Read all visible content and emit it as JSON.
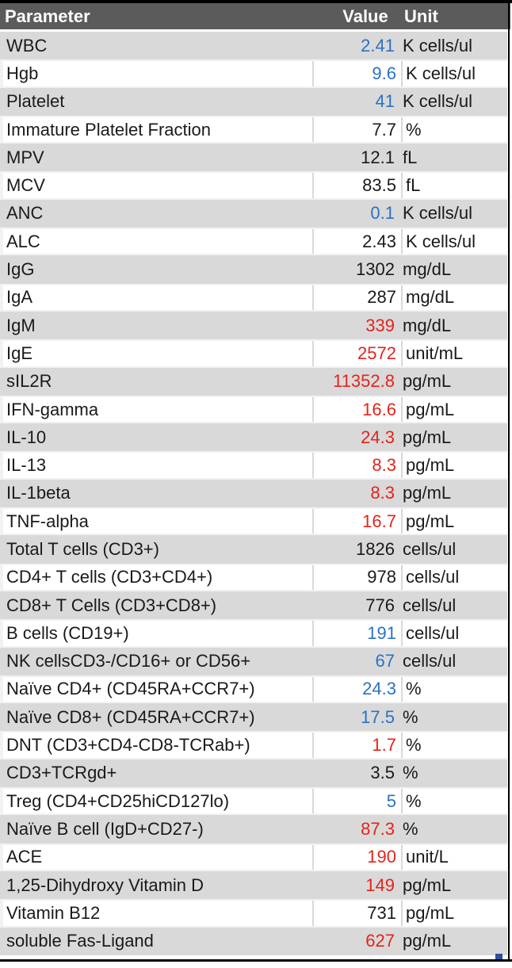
{
  "header": {
    "param": "Parameter",
    "value": "Value",
    "unit": "Unit"
  },
  "colors": {
    "normal": "#1a1a1a",
    "low": "#2a72c4",
    "high": "#e5231c",
    "header_bg": "#5b5b5b"
  },
  "rows": [
    {
      "name": "WBC",
      "value": "2.41",
      "unit": "K cells/ul",
      "flag": "low"
    },
    {
      "name": "Hgb",
      "value": "9.6",
      "unit": "K cells/ul",
      "flag": "low"
    },
    {
      "name": "Platelet",
      "value": "41",
      "unit": "K cells/ul",
      "flag": "low"
    },
    {
      "name": "Immature Platelet Fraction",
      "value": "7.7",
      "unit": "%",
      "flag": "normal"
    },
    {
      "name": "MPV",
      "value": "12.1",
      "unit": "fL",
      "flag": "normal"
    },
    {
      "name": "MCV",
      "value": "83.5",
      "unit": "fL",
      "flag": "normal"
    },
    {
      "name": "ANC",
      "value": "0.1",
      "unit": "K cells/ul",
      "flag": "low"
    },
    {
      "name": "ALC",
      "value": "2.43",
      "unit": "K cells/ul",
      "flag": "normal"
    },
    {
      "name": "IgG",
      "value": "1302",
      "unit": "mg/dL",
      "flag": "normal"
    },
    {
      "name": "IgA",
      "value": "287",
      "unit": "mg/dL",
      "flag": "normal"
    },
    {
      "name": "IgM",
      "value": "339",
      "unit": "mg/dL",
      "flag": "high"
    },
    {
      "name": "IgE",
      "value": "2572",
      "unit": "unit/mL",
      "flag": "high"
    },
    {
      "name": "sIL2R",
      "value": "11352.8",
      "unit": "pg/mL",
      "flag": "high"
    },
    {
      "name": "IFN-gamma",
      "value": "16.6",
      "unit": "pg/mL",
      "flag": "high"
    },
    {
      "name": "IL-10",
      "value": "24.3",
      "unit": "pg/mL",
      "flag": "high"
    },
    {
      "name": "IL-13",
      "value": "8.3",
      "unit": "pg/mL",
      "flag": "high"
    },
    {
      "name": "IL-1beta",
      "value": "8.3",
      "unit": "pg/mL",
      "flag": "high"
    },
    {
      "name": "TNF-alpha",
      "value": "16.7",
      "unit": "pg/mL",
      "flag": "high"
    },
    {
      "name": "Total T cells (CD3+)",
      "value": "1826",
      "unit": "cells/ul",
      "flag": "normal"
    },
    {
      "name": "CD4+ T cells (CD3+CD4+)",
      "value": "978",
      "unit": "cells/ul",
      "flag": "normal"
    },
    {
      "name": "CD8+ T Cells (CD3+CD8+)",
      "value": "776",
      "unit": "cells/ul",
      "flag": "normal"
    },
    {
      "name": "B cells (CD19+)",
      "value": "191",
      "unit": "cells/ul",
      "flag": "low"
    },
    {
      "name": "NK cellsCD3-/CD16+ or CD56+",
      "value": "67",
      "unit": "cells/ul",
      "flag": "low"
    },
    {
      "name": "Naïve CD4+ (CD45RA+CCR7+)",
      "value": "24.3",
      "unit": "%",
      "flag": "low"
    },
    {
      "name": "Naïve CD8+ (CD45RA+CCR7+)",
      "value": "17.5",
      "unit": "%",
      "flag": "low"
    },
    {
      "name": "DNT (CD3+CD4-CD8-TCRab+)",
      "value": "1.7",
      "unit": "%",
      "flag": "high"
    },
    {
      "name": "CD3+TCRgd+",
      "value": "3.5",
      "unit": "%",
      "flag": "normal"
    },
    {
      "name": "Treg (CD4+CD25hiCD127lo)",
      "value": "5",
      "unit": "%",
      "flag": "low"
    },
    {
      "name": "Naïve B cell (IgD+CD27-)",
      "value": "87.3",
      "unit": "%",
      "flag": "high"
    },
    {
      "name": "ACE",
      "value": "190",
      "unit": "unit/L",
      "flag": "high"
    },
    {
      "name": "1,25-Dihydroxy Vitamin D",
      "value": "149",
      "unit": "pg/mL",
      "flag": "high"
    },
    {
      "name": "Vitamin B12",
      "value": "731",
      "unit": "pg/mL",
      "flag": "normal"
    },
    {
      "name": "soluble Fas-Ligand",
      "value": "627",
      "unit": "pg/mL",
      "flag": "high"
    }
  ]
}
